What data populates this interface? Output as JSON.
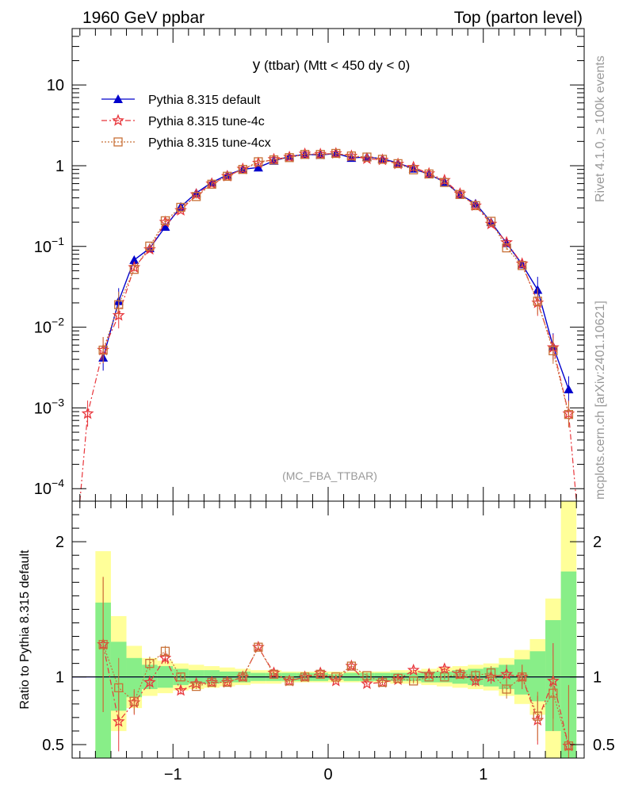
{
  "header": {
    "left": "1960 GeV ppbar",
    "right": "Top (parton level)"
  },
  "side_labels": {
    "rivet": "Rivet 4.1.0, ≥ 100k events",
    "mcplots": "mcplots.cern.ch [arXiv:2401.10621]"
  },
  "colors": {
    "default": "#0000cc",
    "tune4c": "#e8353b",
    "tune4cx": "#c87137",
    "band_yellow": "#ffff99",
    "band_green": "#88ee88"
  },
  "chart_data": [
    {
      "type": "line",
      "title": "y (ttbar) (Mtt < 450 dy < 0)",
      "title_main": "y",
      "title_rest": " (ttbar) (Mtt < 450 dy < 0)",
      "watermark": "(MC_FBA_TTBAR)",
      "yscale": "log",
      "xlim": [
        -1.65,
        1.65
      ],
      "ylim": [
        7e-05,
        50
      ],
      "yticks": [
        {
          "v": 10,
          "label": "10"
        },
        {
          "v": 1,
          "label": "1"
        },
        {
          "v": 0.1,
          "base": "10",
          "exp": "−1"
        },
        {
          "v": 0.01,
          "base": "10",
          "exp": "−2"
        },
        {
          "v": 0.001,
          "base": "10",
          "exp": "−3"
        },
        {
          "v": 0.0001,
          "base": "10",
          "exp": "−4"
        }
      ],
      "series": [
        {
          "name": "Pythia 8.315 default",
          "key": "default",
          "marker": "triangle",
          "dash": "",
          "x": [
            -1.45,
            -1.35,
            -1.25,
            -1.15,
            -1.05,
            -0.95,
            -0.85,
            -0.75,
            -0.65,
            -0.55,
            -0.45,
            -0.35,
            -0.25,
            -0.15,
            -0.05,
            0.05,
            0.15,
            0.25,
            0.35,
            0.45,
            0.55,
            0.65,
            0.75,
            0.85,
            0.95,
            1.05,
            1.15,
            1.25,
            1.35,
            1.45,
            1.55
          ],
          "y": [
            0.0042,
            0.021,
            0.068,
            0.095,
            0.175,
            0.31,
            0.46,
            0.62,
            0.77,
            0.9,
            0.95,
            1.15,
            1.3,
            1.38,
            1.36,
            1.42,
            1.25,
            1.28,
            1.22,
            1.08,
            0.92,
            0.78,
            0.63,
            0.44,
            0.34,
            0.2,
            0.11,
            0.06,
            0.029,
            0.0058,
            0.0017
          ]
        },
        {
          "name": "Pythia 8.315 tune-4c",
          "key": "tune4c",
          "marker": "star",
          "dash": "7,3,2,3",
          "x": [
            -1.55,
            -1.45,
            -1.35,
            -1.25,
            -1.15,
            -1.05,
            -0.95,
            -0.85,
            -0.75,
            -0.65,
            -0.55,
            -0.45,
            -0.35,
            -0.25,
            -0.15,
            -0.05,
            0.05,
            0.15,
            0.25,
            0.35,
            0.45,
            0.55,
            0.65,
            0.75,
            0.85,
            0.95,
            1.05,
            1.15,
            1.25,
            1.35,
            1.45,
            1.55
          ],
          "y": [
            0.00085,
            0.0052,
            0.014,
            0.055,
            0.092,
            0.2,
            0.28,
            0.44,
            0.6,
            0.74,
            0.91,
            1.08,
            1.2,
            1.28,
            1.4,
            1.39,
            1.42,
            1.32,
            1.22,
            1.18,
            1.05,
            0.96,
            0.8,
            0.66,
            0.45,
            0.32,
            0.19,
            0.112,
            0.061,
            0.02,
            0.0056,
            0.00085
          ]
        },
        {
          "name": "Pythia 8.315 tune-4cx",
          "key": "tune4cx",
          "marker": "square",
          "dash": "2,2",
          "x": [
            -1.45,
            -1.35,
            -1.25,
            -1.15,
            -1.05,
            -0.95,
            -0.85,
            -0.75,
            -0.65,
            -0.55,
            -0.45,
            -0.35,
            -0.25,
            -0.15,
            -0.05,
            0.05,
            0.15,
            0.25,
            0.35,
            0.45,
            0.55,
            0.65,
            0.75,
            0.85,
            0.95,
            1.05,
            1.15,
            1.25,
            1.35,
            1.45,
            1.55
          ],
          "y": [
            0.0052,
            0.019,
            0.052,
            0.101,
            0.208,
            0.305,
            0.415,
            0.59,
            0.74,
            0.9,
            1.12,
            1.18,
            1.26,
            1.38,
            1.38,
            1.42,
            1.32,
            1.28,
            1.2,
            1.06,
            0.89,
            0.79,
            0.62,
            0.44,
            0.32,
            0.205,
            0.096,
            0.058,
            0.021,
            0.0051,
            0.00083
          ]
        }
      ]
    },
    {
      "type": "line",
      "ylabel": "Ratio to Pythia 8.315 default",
      "xlim": [
        -1.65,
        1.65
      ],
      "ylim": [
        0.4,
        2.3
      ],
      "reference": 1,
      "xticks": [
        {
          "v": -1,
          "label": "−1"
        },
        {
          "v": 0,
          "label": "0"
        },
        {
          "v": 1,
          "label": "1"
        }
      ],
      "yticks": [
        {
          "v": 0.5,
          "label": "0.5"
        },
        {
          "v": 1,
          "label": "1"
        },
        {
          "v": 2,
          "label": "2"
        }
      ],
      "band_edges": [
        -1.5,
        -1.4,
        -1.3,
        -1.2,
        -1.1,
        -1.0,
        -0.9,
        -0.8,
        -0.7,
        -0.6,
        -0.5,
        -0.4,
        -0.3,
        -0.2,
        -0.1,
        0.0,
        0.1,
        0.2,
        0.3,
        0.4,
        0.5,
        0.6,
        0.7,
        0.8,
        0.9,
        1.0,
        1.1,
        1.2,
        1.3,
        1.4,
        1.5,
        1.6
      ],
      "band_yellow_lo": [
        0.4,
        0.6,
        0.77,
        0.86,
        0.88,
        0.9,
        0.91,
        0.92,
        0.93,
        0.94,
        0.95,
        0.95,
        0.96,
        0.96,
        0.96,
        0.96,
        0.96,
        0.96,
        0.96,
        0.95,
        0.95,
        0.94,
        0.93,
        0.92,
        0.91,
        0.9,
        0.86,
        0.8,
        0.72,
        0.4,
        0.4
      ],
      "band_yellow_hi": [
        1.93,
        1.45,
        1.23,
        1.14,
        1.12,
        1.1,
        1.09,
        1.08,
        1.07,
        1.06,
        1.05,
        1.05,
        1.04,
        1.04,
        1.04,
        1.04,
        1.04,
        1.04,
        1.04,
        1.05,
        1.05,
        1.06,
        1.07,
        1.08,
        1.09,
        1.1,
        1.14,
        1.2,
        1.28,
        1.58,
        2.38
      ],
      "band_green_lo": [
        0.4,
        0.75,
        0.85,
        0.91,
        0.92,
        0.94,
        0.95,
        0.95,
        0.96,
        0.96,
        0.97,
        0.97,
        0.97,
        0.97,
        0.97,
        0.98,
        0.97,
        0.97,
        0.97,
        0.97,
        0.97,
        0.96,
        0.96,
        0.95,
        0.94,
        0.93,
        0.91,
        0.87,
        0.82,
        0.6,
        0.4
      ],
      "band_green_hi": [
        1.55,
        1.26,
        1.14,
        1.09,
        1.08,
        1.06,
        1.05,
        1.05,
        1.04,
        1.04,
        1.03,
        1.03,
        1.03,
        1.03,
        1.03,
        1.02,
        1.03,
        1.03,
        1.03,
        1.03,
        1.03,
        1.04,
        1.04,
        1.05,
        1.06,
        1.07,
        1.09,
        1.13,
        1.19,
        1.42,
        1.78
      ],
      "series": [
        {
          "key": "tune4c",
          "marker": "star",
          "dash": "7,3,2,3",
          "x": [
            -1.45,
            -1.35,
            -1.25,
            -1.15,
            -1.05,
            -0.95,
            -0.85,
            -0.75,
            -0.65,
            -0.55,
            -0.45,
            -0.35,
            -0.25,
            -0.15,
            -0.05,
            0.05,
            0.15,
            0.25,
            0.35,
            0.45,
            0.55,
            0.65,
            0.75,
            0.85,
            0.95,
            1.05,
            1.15,
            1.25,
            1.35,
            1.45,
            1.55
          ],
          "y": [
            1.24,
            0.67,
            0.81,
            0.96,
            1.14,
            0.9,
            0.95,
            0.96,
            0.96,
            1.0,
            1.22,
            1.03,
            0.97,
            1.0,
            1.03,
            0.97,
            1.08,
            0.95,
            0.96,
            0.98,
            1.05,
            1.02,
            1.06,
            1.02,
            0.97,
            1.0,
            1.02,
            1.0,
            0.68,
            0.97,
            0.49
          ],
          "err": [
            0.5,
            0.22,
            0.09,
            0.05,
            0.04,
            0.03,
            0.02,
            0.02,
            0.02,
            0.02,
            0.02,
            0.02,
            0.02,
            0.02,
            0.02,
            0.02,
            0.02,
            0.02,
            0.02,
            0.02,
            0.02,
            0.02,
            0.02,
            0.03,
            0.04,
            0.05,
            0.07,
            0.09,
            0.18,
            0.28,
            0.45
          ]
        },
        {
          "key": "tune4cx",
          "marker": "square",
          "dash": "2,2",
          "x": [
            -1.45,
            -1.35,
            -1.25,
            -1.15,
            -1.05,
            -0.95,
            -0.85,
            -0.75,
            -0.65,
            -0.55,
            -0.45,
            -0.35,
            -0.25,
            -0.15,
            -0.05,
            0.05,
            0.15,
            0.25,
            0.35,
            0.45,
            0.55,
            0.65,
            0.75,
            0.85,
            0.95,
            1.05,
            1.15,
            1.25,
            1.35,
            1.45,
            1.55
          ],
          "y": [
            1.24,
            0.92,
            0.82,
            1.1,
            1.19,
            1.0,
            0.93,
            0.96,
            0.96,
            1.0,
            1.22,
            1.02,
            0.97,
            1.0,
            1.02,
            1.0,
            1.08,
            1.01,
            0.96,
            0.99,
            0.97,
            1.0,
            1.0,
            1.02,
            1.01,
            1.03,
            0.91,
            1.0,
            0.71,
            0.88,
            0.49
          ],
          "err": [
            0.5,
            0.22,
            0.09,
            0.05,
            0.04,
            0.03,
            0.02,
            0.02,
            0.02,
            0.02,
            0.02,
            0.02,
            0.02,
            0.02,
            0.02,
            0.02,
            0.02,
            0.02,
            0.02,
            0.02,
            0.02,
            0.02,
            0.02,
            0.03,
            0.04,
            0.05,
            0.07,
            0.09,
            0.18,
            0.28,
            0.45
          ]
        }
      ]
    }
  ]
}
